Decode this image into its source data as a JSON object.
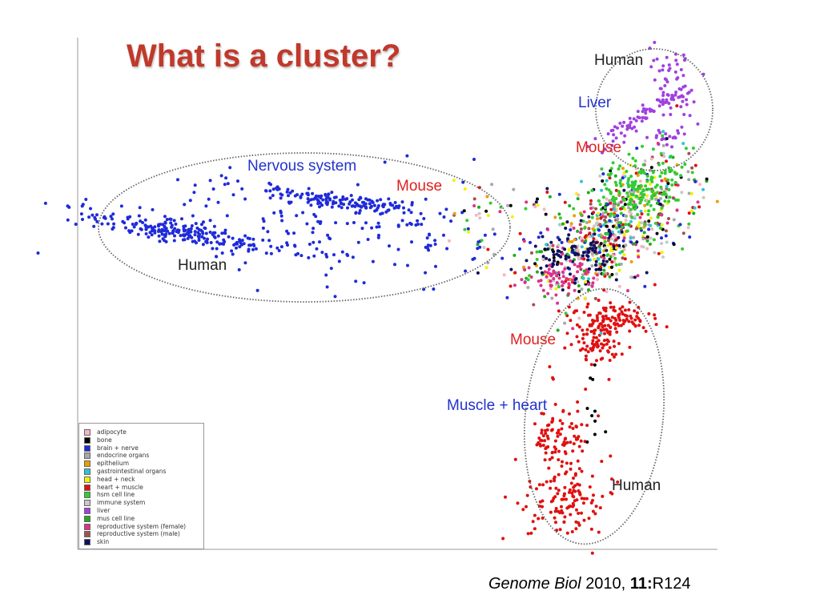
{
  "slide": {
    "title": "What is a cluster?",
    "citation": {
      "journal": "Genome Biol",
      "year": "2010,",
      "volume": "11:",
      "article": "R124"
    }
  },
  "chart_data": {
    "type": "scatter",
    "title": "",
    "xlabel": "",
    "ylabel": "",
    "grid": false,
    "legend_position": "bottom-left",
    "cluster_labels": [
      "Human",
      "Liver",
      "Mouse",
      "Nervous system",
      "Mouse",
      "Human",
      "Mouse",
      "Muscle + heart",
      "Human"
    ],
    "series": [
      {
        "name": "adipocyte",
        "color": "#f4b6c2"
      },
      {
        "name": "bone",
        "color": "#000000"
      },
      {
        "name": "brain + nerve",
        "color": "#1f2bd8"
      },
      {
        "name": "endocrine organs",
        "color": "#a8a8a8"
      },
      {
        "name": "epithelium",
        "color": "#e8a000"
      },
      {
        "name": "gastrointestinal organs",
        "color": "#2ec4d6"
      },
      {
        "name": "head + neck",
        "color": "#f2f200"
      },
      {
        "name": "heart + muscle",
        "color": "#e01010"
      },
      {
        "name": "hsm cell line",
        "color": "#33cc33"
      },
      {
        "name": "immune system",
        "color": "#c8c8c8"
      },
      {
        "name": "liver",
        "color": "#a040e0"
      },
      {
        "name": "mus cell line",
        "color": "#22aa22"
      },
      {
        "name": "reproductive system (female)",
        "color": "#e0308a"
      },
      {
        "name": "reproductive system (male)",
        "color": "#a05050"
      },
      {
        "name": "skin",
        "color": "#101060"
      }
    ]
  }
}
